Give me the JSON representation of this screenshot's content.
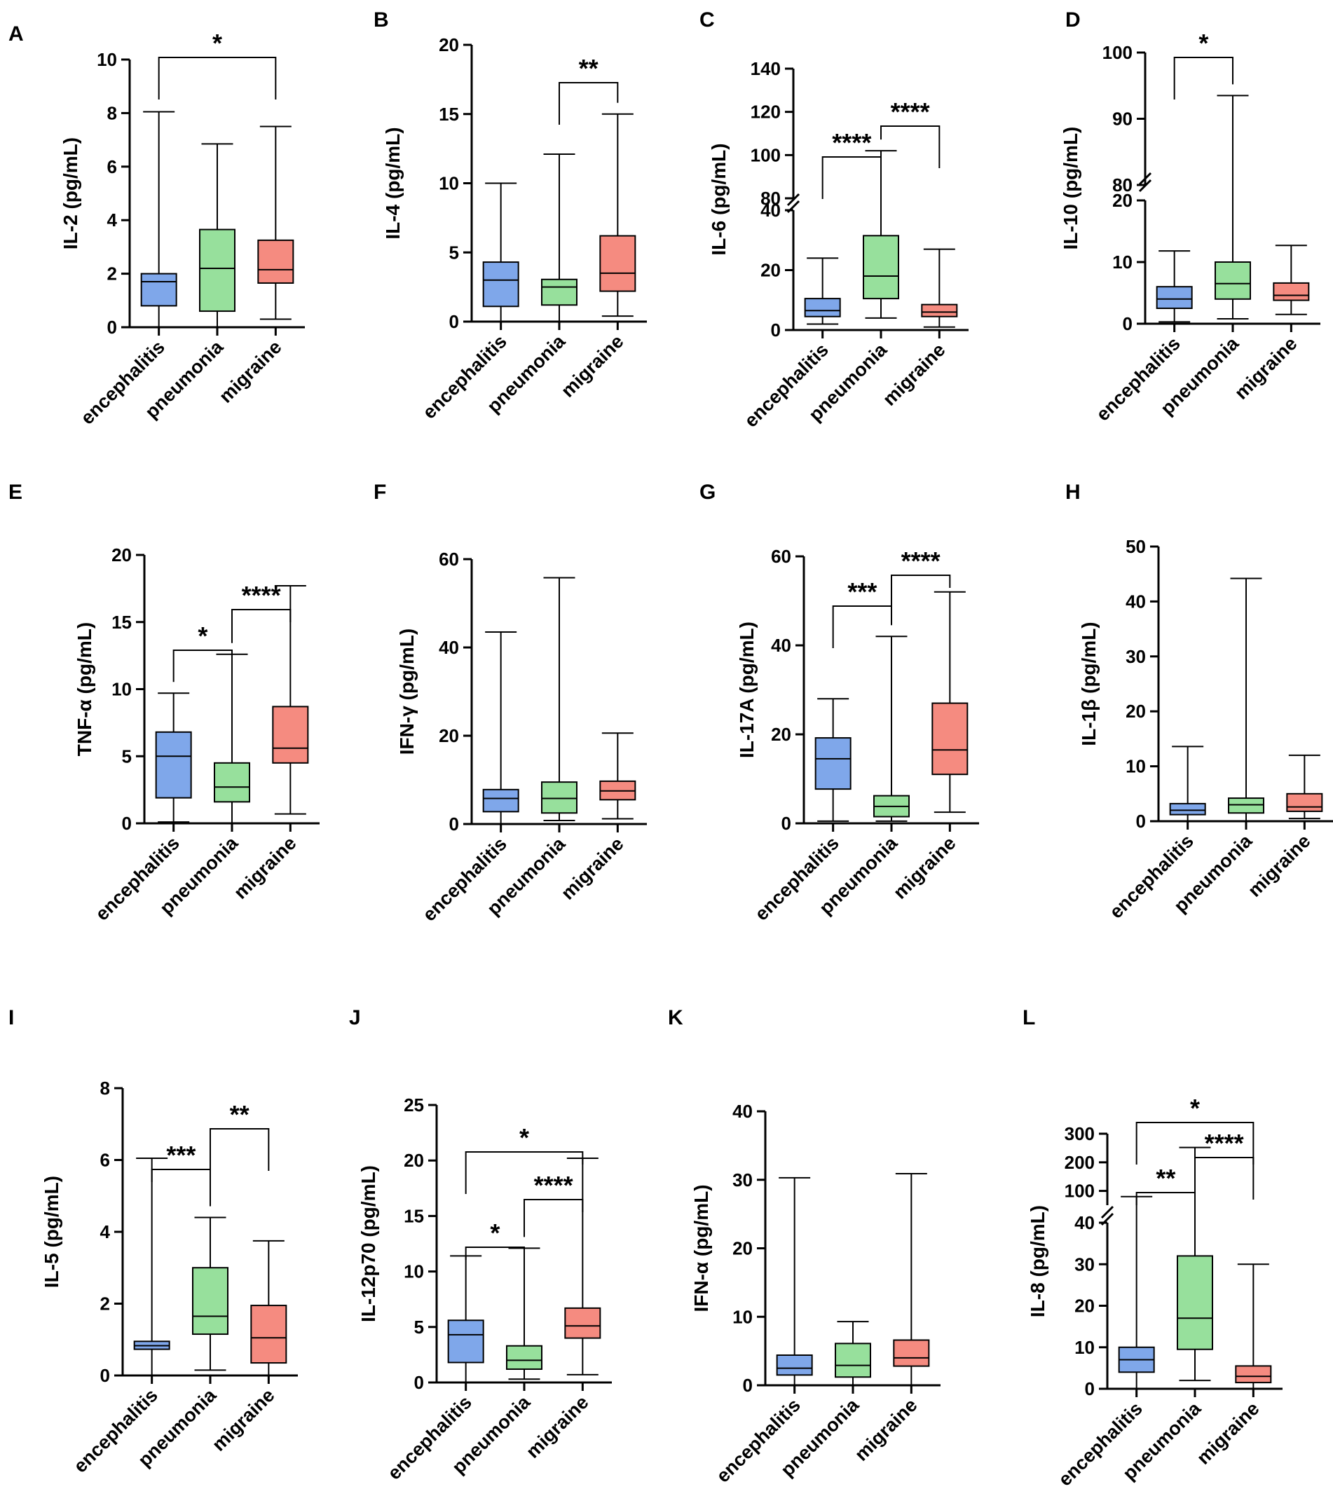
{
  "figure": {
    "groups": [
      "encephalitis",
      "pneumonia",
      "migraine"
    ],
    "group_colors": [
      "#7fa7ea",
      "#97e09c",
      "#f58b80"
    ]
  },
  "chart_data": [
    {
      "id": "A",
      "type": "box",
      "ylabel": "IL-2 (pg/mL)",
      "categories": [
        "encephalitis",
        "pneumonia",
        "migraine"
      ],
      "axis": {
        "segments": [
          {
            "min": 0,
            "max": 10,
            "ticks": [
              0,
              2,
              4,
              6,
              8,
              10
            ]
          }
        ]
      },
      "boxes": [
        {
          "min": 0,
          "q1": 0.8,
          "median": 1.7,
          "q3": 2.0,
          "max": 8.05
        },
        {
          "min": 0,
          "q1": 0.6,
          "median": 2.2,
          "q3": 3.65,
          "max": 6.85
        },
        {
          "min": 0.3,
          "q1": 1.65,
          "median": 2.15,
          "q3": 3.25,
          "max": 7.5
        }
      ],
      "significance": [
        {
          "pair": [
            0,
            2
          ],
          "label": "*",
          "level": 0
        }
      ]
    },
    {
      "id": "B",
      "type": "box",
      "ylabel": "IL-4 (pg/mL)",
      "categories": [
        "encephalitis",
        "pneumonia",
        "migraine"
      ],
      "axis": {
        "segments": [
          {
            "min": 0,
            "max": 20,
            "ticks": [
              0,
              5,
              10,
              15,
              20
            ]
          }
        ]
      },
      "boxes": [
        {
          "min": 0,
          "q1": 1.1,
          "median": 3.0,
          "q3": 4.3,
          "max": 10.0
        },
        {
          "min": 0,
          "q1": 1.2,
          "median": 2.5,
          "q3": 3.05,
          "max": 12.1
        },
        {
          "min": 0.4,
          "q1": 2.2,
          "median": 3.5,
          "q3": 6.2,
          "max": 15.0
        }
      ],
      "significance": [
        {
          "pair": [
            1,
            2
          ],
          "label": "**",
          "level": 0
        }
      ]
    },
    {
      "id": "C",
      "type": "box",
      "ylabel": "IL-6 (pg/mL)",
      "categories": [
        "encephalitis",
        "pneumonia",
        "migraine"
      ],
      "axis": {
        "segments": [
          {
            "min": 0,
            "max": 40,
            "ticks": [
              0,
              20,
              40
            ]
          },
          {
            "min": 80,
            "max": 140,
            "ticks": [
              80,
              100,
              120,
              140
            ]
          }
        ]
      },
      "boxes": [
        {
          "min": 2,
          "q1": 4.5,
          "median": 6.5,
          "q3": 10.5,
          "max": 24
        },
        {
          "min": 4,
          "q1": 10.5,
          "median": 18,
          "q3": 31.5,
          "max": 102
        },
        {
          "min": 1,
          "q1": 4.5,
          "median": 6,
          "q3": 8.5,
          "max": 27
        }
      ],
      "significance": [
        {
          "pair": [
            0,
            1
          ],
          "label": "****",
          "level": 0
        },
        {
          "pair": [
            1,
            2
          ],
          "label": "****",
          "level": 1
        }
      ]
    },
    {
      "id": "D",
      "type": "box",
      "ylabel": "IL-10 (pg/mL)",
      "categories": [
        "encephalitis",
        "pneumonia",
        "migraine"
      ],
      "axis": {
        "segments": [
          {
            "min": 0,
            "max": 20,
            "ticks": [
              0,
              10,
              20
            ]
          },
          {
            "min": 80,
            "max": 100,
            "ticks": [
              80,
              90,
              100
            ]
          }
        ]
      },
      "boxes": [
        {
          "min": 0.3,
          "q1": 2.5,
          "median": 4.0,
          "q3": 6.0,
          "max": 11.8
        },
        {
          "min": 0.8,
          "q1": 4.0,
          "median": 6.5,
          "q3": 10.0,
          "max": 93.5
        },
        {
          "min": 1.5,
          "q1": 3.8,
          "median": 4.6,
          "q3": 6.6,
          "max": 12.7
        }
      ],
      "significance": [
        {
          "pair": [
            0,
            1
          ],
          "label": "*",
          "level": 0
        }
      ]
    },
    {
      "id": "E",
      "type": "box",
      "ylabel": "TNF-α (pg/mL)",
      "categories": [
        "encephalitis",
        "pneumonia",
        "migraine"
      ],
      "axis": {
        "segments": [
          {
            "min": 0,
            "max": 20,
            "ticks": [
              0,
              5,
              10,
              15,
              20
            ]
          }
        ]
      },
      "boxes": [
        {
          "min": 0.1,
          "q1": 1.9,
          "median": 5.0,
          "q3": 6.8,
          "max": 9.7
        },
        {
          "min": 0,
          "q1": 1.6,
          "median": 2.7,
          "q3": 4.5,
          "max": 12.6
        },
        {
          "min": 0.7,
          "q1": 4.5,
          "median": 5.6,
          "q3": 8.7,
          "max": 17.7
        }
      ],
      "significance": [
        {
          "pair": [
            0,
            1
          ],
          "label": "*",
          "level": 0
        },
        {
          "pair": [
            1,
            2
          ],
          "label": "****",
          "level": 1
        }
      ]
    },
    {
      "id": "F",
      "type": "box",
      "ylabel": "IFN-γ (pg/mL)",
      "categories": [
        "encephalitis",
        "pneumonia",
        "migraine"
      ],
      "axis": {
        "segments": [
          {
            "min": 0,
            "max": 60,
            "ticks": [
              0,
              20,
              40,
              60
            ]
          }
        ]
      },
      "boxes": [
        {
          "min": 0,
          "q1": 2.8,
          "median": 5.8,
          "q3": 7.8,
          "max": 43.5
        },
        {
          "min": 0.8,
          "q1": 2.5,
          "median": 5.8,
          "q3": 9.5,
          "max": 55.8
        },
        {
          "min": 1.2,
          "q1": 5.5,
          "median": 7.5,
          "q3": 9.7,
          "max": 20.6
        }
      ],
      "significance": []
    },
    {
      "id": "G",
      "type": "box",
      "ylabel": "IL-17A (pg/mL)",
      "categories": [
        "encephalitis",
        "pneumonia",
        "migraine"
      ],
      "axis": {
        "segments": [
          {
            "min": 0,
            "max": 60,
            "ticks": [
              0,
              20,
              40,
              60
            ]
          }
        ]
      },
      "boxes": [
        {
          "min": 0.5,
          "q1": 7.7,
          "median": 14.5,
          "q3": 19.2,
          "max": 28.0
        },
        {
          "min": 0.5,
          "q1": 1.5,
          "median": 3.8,
          "q3": 6.2,
          "max": 42.0
        },
        {
          "min": 2.5,
          "q1": 11.0,
          "median": 16.5,
          "q3": 27.0,
          "max": 52.0
        }
      ],
      "significance": [
        {
          "pair": [
            0,
            1
          ],
          "label": "***",
          "level": 0
        },
        {
          "pair": [
            1,
            2
          ],
          "label": "****",
          "level": 1
        }
      ]
    },
    {
      "id": "H",
      "type": "box",
      "ylabel": "IL-1β (pg/mL)",
      "categories": [
        "encephalitis",
        "pneumonia",
        "migraine"
      ],
      "axis": {
        "segments": [
          {
            "min": 0,
            "max": 50,
            "ticks": [
              0,
              10,
              20,
              30,
              40,
              50
            ]
          }
        ]
      },
      "boxes": [
        {
          "min": 0,
          "q1": 1.2,
          "median": 2.0,
          "q3": 3.2,
          "max": 13.6
        },
        {
          "min": 0,
          "q1": 1.5,
          "median": 3.0,
          "q3": 4.2,
          "max": 44.2
        },
        {
          "min": 0.5,
          "q1": 1.8,
          "median": 2.6,
          "q3": 5.0,
          "max": 12.0
        }
      ],
      "significance": []
    },
    {
      "id": "I",
      "type": "box",
      "ylabel": "IL-5 (pg/mL)",
      "categories": [
        "encephalitis",
        "pneumonia",
        "migraine"
      ],
      "axis": {
        "segments": [
          {
            "min": 0,
            "max": 8,
            "ticks": [
              0,
              2,
              4,
              6,
              8
            ]
          }
        ]
      },
      "boxes": [
        {
          "min": 0,
          "q1": 0.73,
          "median": 0.83,
          "q3": 0.95,
          "max": 6.05
        },
        {
          "min": 0.15,
          "q1": 1.15,
          "median": 1.65,
          "q3": 3.0,
          "max": 4.4
        },
        {
          "min": 0,
          "q1": 0.35,
          "median": 1.05,
          "q3": 1.95,
          "max": 3.75
        }
      ],
      "significance": [
        {
          "pair": [
            0,
            1
          ],
          "label": "***",
          "level": 0
        },
        {
          "pair": [
            1,
            2
          ],
          "label": "**",
          "level": 1
        }
      ]
    },
    {
      "id": "J",
      "type": "box",
      "ylabel": "IL-12p70 (pg/mL)",
      "categories": [
        "encephalitis",
        "pneumonia",
        "migraine"
      ],
      "axis": {
        "segments": [
          {
            "min": 0,
            "max": 25,
            "ticks": [
              0,
              5,
              10,
              15,
              20,
              25
            ]
          }
        ]
      },
      "boxes": [
        {
          "min": 0,
          "q1": 1.8,
          "median": 4.3,
          "q3": 5.6,
          "max": 11.4
        },
        {
          "min": 0.3,
          "q1": 1.2,
          "median": 2.0,
          "q3": 3.3,
          "max": 12.1
        },
        {
          "min": 0.7,
          "q1": 4.0,
          "median": 5.1,
          "q3": 6.7,
          "max": 20.2
        }
      ],
      "significance": [
        {
          "pair": [
            0,
            1
          ],
          "label": "*",
          "level": 0
        },
        {
          "pair": [
            1,
            2
          ],
          "label": "****",
          "level": 1
        },
        {
          "pair": [
            0,
            2
          ],
          "label": "*",
          "level": 2
        }
      ]
    },
    {
      "id": "K",
      "type": "box",
      "ylabel": "IFN-α (pg/mL)",
      "categories": [
        "encephalitis",
        "pneumonia",
        "migraine"
      ],
      "axis": {
        "segments": [
          {
            "min": 0,
            "max": 40,
            "ticks": [
              0,
              10,
              20,
              30,
              40
            ]
          }
        ]
      },
      "boxes": [
        {
          "min": 0,
          "q1": 1.5,
          "median": 2.5,
          "q3": 4.4,
          "max": 30.3
        },
        {
          "min": 0,
          "q1": 1.2,
          "median": 2.9,
          "q3": 6.1,
          "max": 9.3
        },
        {
          "min": 0,
          "q1": 2.8,
          "median": 4.0,
          "q3": 6.6,
          "max": 30.9
        }
      ],
      "significance": []
    },
    {
      "id": "L",
      "type": "box",
      "ylabel": "IL-8 (pg/mL)",
      "categories": [
        "encephalitis",
        "pneumonia",
        "migraine"
      ],
      "axis": {
        "segments": [
          {
            "min": 0,
            "max": 40,
            "ticks": [
              0,
              10,
              20,
              30,
              40
            ]
          },
          {
            "min": 50,
            "max": 300,
            "ticks": [
              100,
              200,
              300
            ]
          }
        ]
      },
      "boxes": [
        {
          "min": 0,
          "q1": 4.0,
          "median": 7.0,
          "q3": 10.0,
          "max": 80
        },
        {
          "min": 2,
          "q1": 9.5,
          "median": 17.0,
          "q3": 32.0,
          "max": 252
        },
        {
          "min": 0,
          "q1": 1.5,
          "median": 3.0,
          "q3": 5.5,
          "max": 30
        }
      ],
      "significance": [
        {
          "pair": [
            0,
            1
          ],
          "label": "**",
          "level": 0
        },
        {
          "pair": [
            1,
            2
          ],
          "label": "****",
          "level": 1
        },
        {
          "pair": [
            0,
            2
          ],
          "label": "*",
          "level": 2
        }
      ]
    }
  ]
}
